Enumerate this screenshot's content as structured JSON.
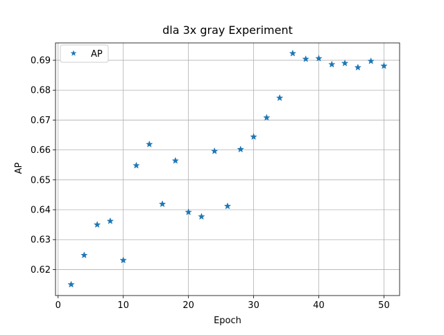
{
  "chart_data": {
    "type": "scatter",
    "title": "dla 3x gray Experiment",
    "xlabel": "Epoch",
    "ylabel": "AP",
    "xlim": [
      -0.4,
      52.4
    ],
    "ylim": [
      0.6113,
      0.6958
    ],
    "xticks": [
      0,
      10,
      20,
      30,
      40,
      50
    ],
    "yticks": [
      0.62,
      0.63,
      0.64,
      0.65,
      0.66,
      0.67,
      0.68,
      0.69
    ],
    "grid": true,
    "legend": "upper-left",
    "series": [
      {
        "name": "AP",
        "marker": "star",
        "color": "#1f77b4",
        "x": [
          2,
          4,
          6,
          8,
          10,
          12,
          14,
          16,
          18,
          20,
          22,
          24,
          26,
          28,
          30,
          32,
          34,
          36,
          38,
          40,
          42,
          44,
          46,
          48,
          50
        ],
        "y": [
          0.615,
          0.6248,
          0.635,
          0.6362,
          0.6231,
          0.6548,
          0.6619,
          0.6419,
          0.6564,
          0.6392,
          0.6377,
          0.6596,
          0.6412,
          0.6602,
          0.6644,
          0.6708,
          0.6774,
          0.6923,
          0.6904,
          0.6906,
          0.6886,
          0.689,
          0.6876,
          0.6897,
          0.6881
        ]
      }
    ]
  }
}
